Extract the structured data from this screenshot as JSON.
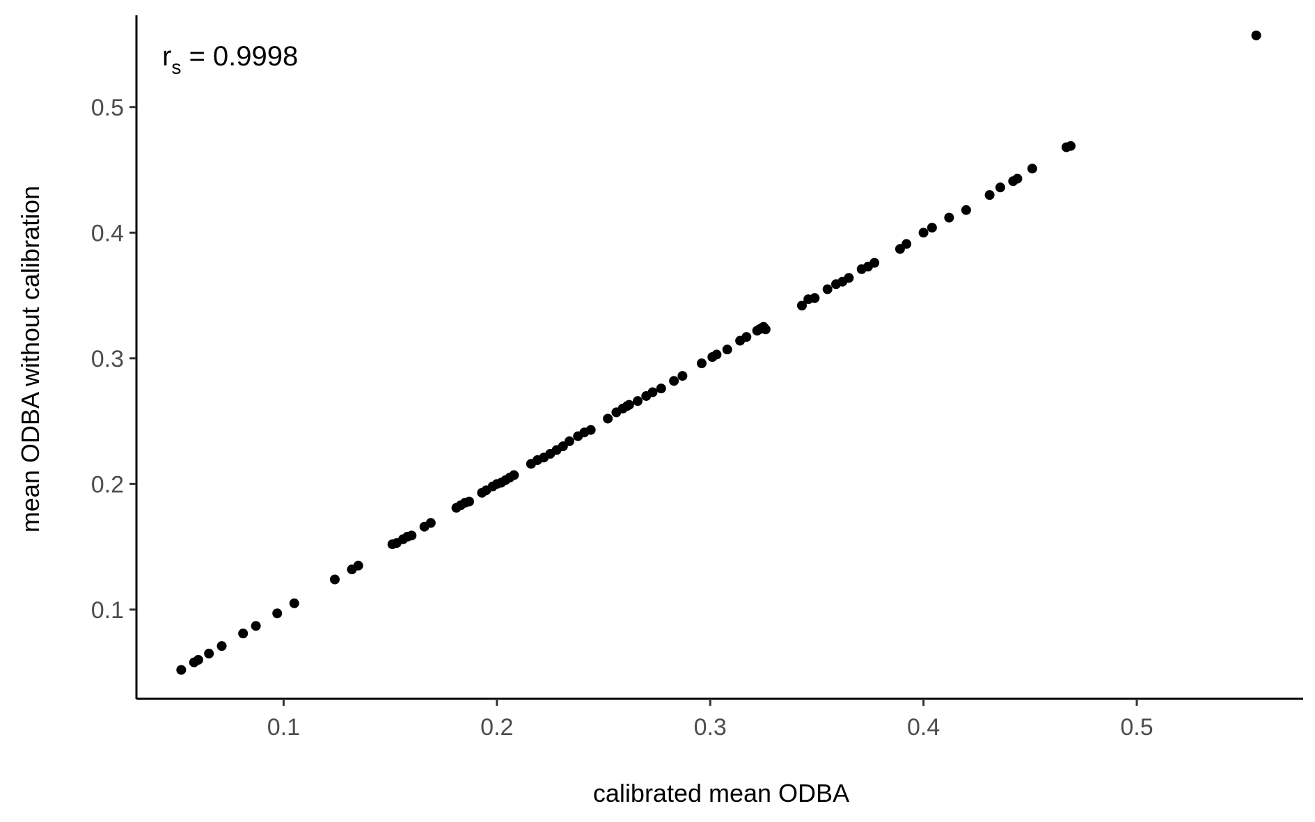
{
  "chart_data": {
    "type": "scatter",
    "title": "",
    "xlabel": "calibrated mean ODBA",
    "ylabel": "mean ODBA without calibration",
    "xlim": [
      0.031,
      0.578
    ],
    "ylim": [
      0.029,
      0.573
    ],
    "x_ticks": [
      0.1,
      0.2,
      0.3,
      0.4,
      0.5
    ],
    "y_ticks": [
      0.1,
      0.2,
      0.3,
      0.4,
      0.5
    ],
    "x_tick_labels": [
      "0.1",
      "0.2",
      "0.3",
      "0.4",
      "0.5"
    ],
    "y_tick_labels": [
      "0.1",
      "0.2",
      "0.3",
      "0.4",
      "0.5"
    ],
    "grid": false,
    "annotation": {
      "symbol": "r",
      "subscript": "s",
      "text": " = 0.9998"
    },
    "point_color": "#000000",
    "points": [
      [
        0.052,
        0.052
      ],
      [
        0.058,
        0.058
      ],
      [
        0.06,
        0.06
      ],
      [
        0.065,
        0.065
      ],
      [
        0.071,
        0.071
      ],
      [
        0.081,
        0.081
      ],
      [
        0.087,
        0.087
      ],
      [
        0.097,
        0.097
      ],
      [
        0.105,
        0.105
      ],
      [
        0.124,
        0.124
      ],
      [
        0.132,
        0.132
      ],
      [
        0.135,
        0.135
      ],
      [
        0.151,
        0.152
      ],
      [
        0.153,
        0.153
      ],
      [
        0.156,
        0.156
      ],
      [
        0.158,
        0.158
      ],
      [
        0.16,
        0.159
      ],
      [
        0.166,
        0.166
      ],
      [
        0.169,
        0.169
      ],
      [
        0.181,
        0.181
      ],
      [
        0.183,
        0.183
      ],
      [
        0.185,
        0.185
      ],
      [
        0.187,
        0.186
      ],
      [
        0.193,
        0.193
      ],
      [
        0.195,
        0.195
      ],
      [
        0.198,
        0.198
      ],
      [
        0.2,
        0.2
      ],
      [
        0.202,
        0.201
      ],
      [
        0.204,
        0.203
      ],
      [
        0.206,
        0.205
      ],
      [
        0.208,
        0.207
      ],
      [
        0.216,
        0.216
      ],
      [
        0.219,
        0.219
      ],
      [
        0.222,
        0.221
      ],
      [
        0.225,
        0.224
      ],
      [
        0.228,
        0.227
      ],
      [
        0.231,
        0.23
      ],
      [
        0.234,
        0.234
      ],
      [
        0.238,
        0.238
      ],
      [
        0.241,
        0.241
      ],
      [
        0.244,
        0.243
      ],
      [
        0.252,
        0.252
      ],
      [
        0.256,
        0.257
      ],
      [
        0.259,
        0.26
      ],
      [
        0.261,
        0.262
      ],
      [
        0.262,
        0.263
      ],
      [
        0.266,
        0.266
      ],
      [
        0.27,
        0.27
      ],
      [
        0.273,
        0.273
      ],
      [
        0.277,
        0.276
      ],
      [
        0.283,
        0.282
      ],
      [
        0.287,
        0.286
      ],
      [
        0.296,
        0.296
      ],
      [
        0.301,
        0.301
      ],
      [
        0.303,
        0.303
      ],
      [
        0.308,
        0.307
      ],
      [
        0.314,
        0.314
      ],
      [
        0.317,
        0.317
      ],
      [
        0.322,
        0.322
      ],
      [
        0.323,
        0.323
      ],
      [
        0.324,
        0.324
      ],
      [
        0.325,
        0.325
      ],
      [
        0.326,
        0.323
      ],
      [
        0.343,
        0.342
      ],
      [
        0.346,
        0.347
      ],
      [
        0.349,
        0.348
      ],
      [
        0.355,
        0.355
      ],
      [
        0.359,
        0.359
      ],
      [
        0.362,
        0.361
      ],
      [
        0.365,
        0.364
      ],
      [
        0.371,
        0.371
      ],
      [
        0.374,
        0.373
      ],
      [
        0.377,
        0.376
      ],
      [
        0.389,
        0.387
      ],
      [
        0.392,
        0.391
      ],
      [
        0.4,
        0.4
      ],
      [
        0.404,
        0.404
      ],
      [
        0.412,
        0.412
      ],
      [
        0.42,
        0.418
      ],
      [
        0.431,
        0.43
      ],
      [
        0.436,
        0.436
      ],
      [
        0.442,
        0.441
      ],
      [
        0.444,
        0.443
      ],
      [
        0.451,
        0.451
      ],
      [
        0.467,
        0.468
      ],
      [
        0.469,
        0.469
      ],
      [
        0.556,
        0.557
      ]
    ]
  }
}
